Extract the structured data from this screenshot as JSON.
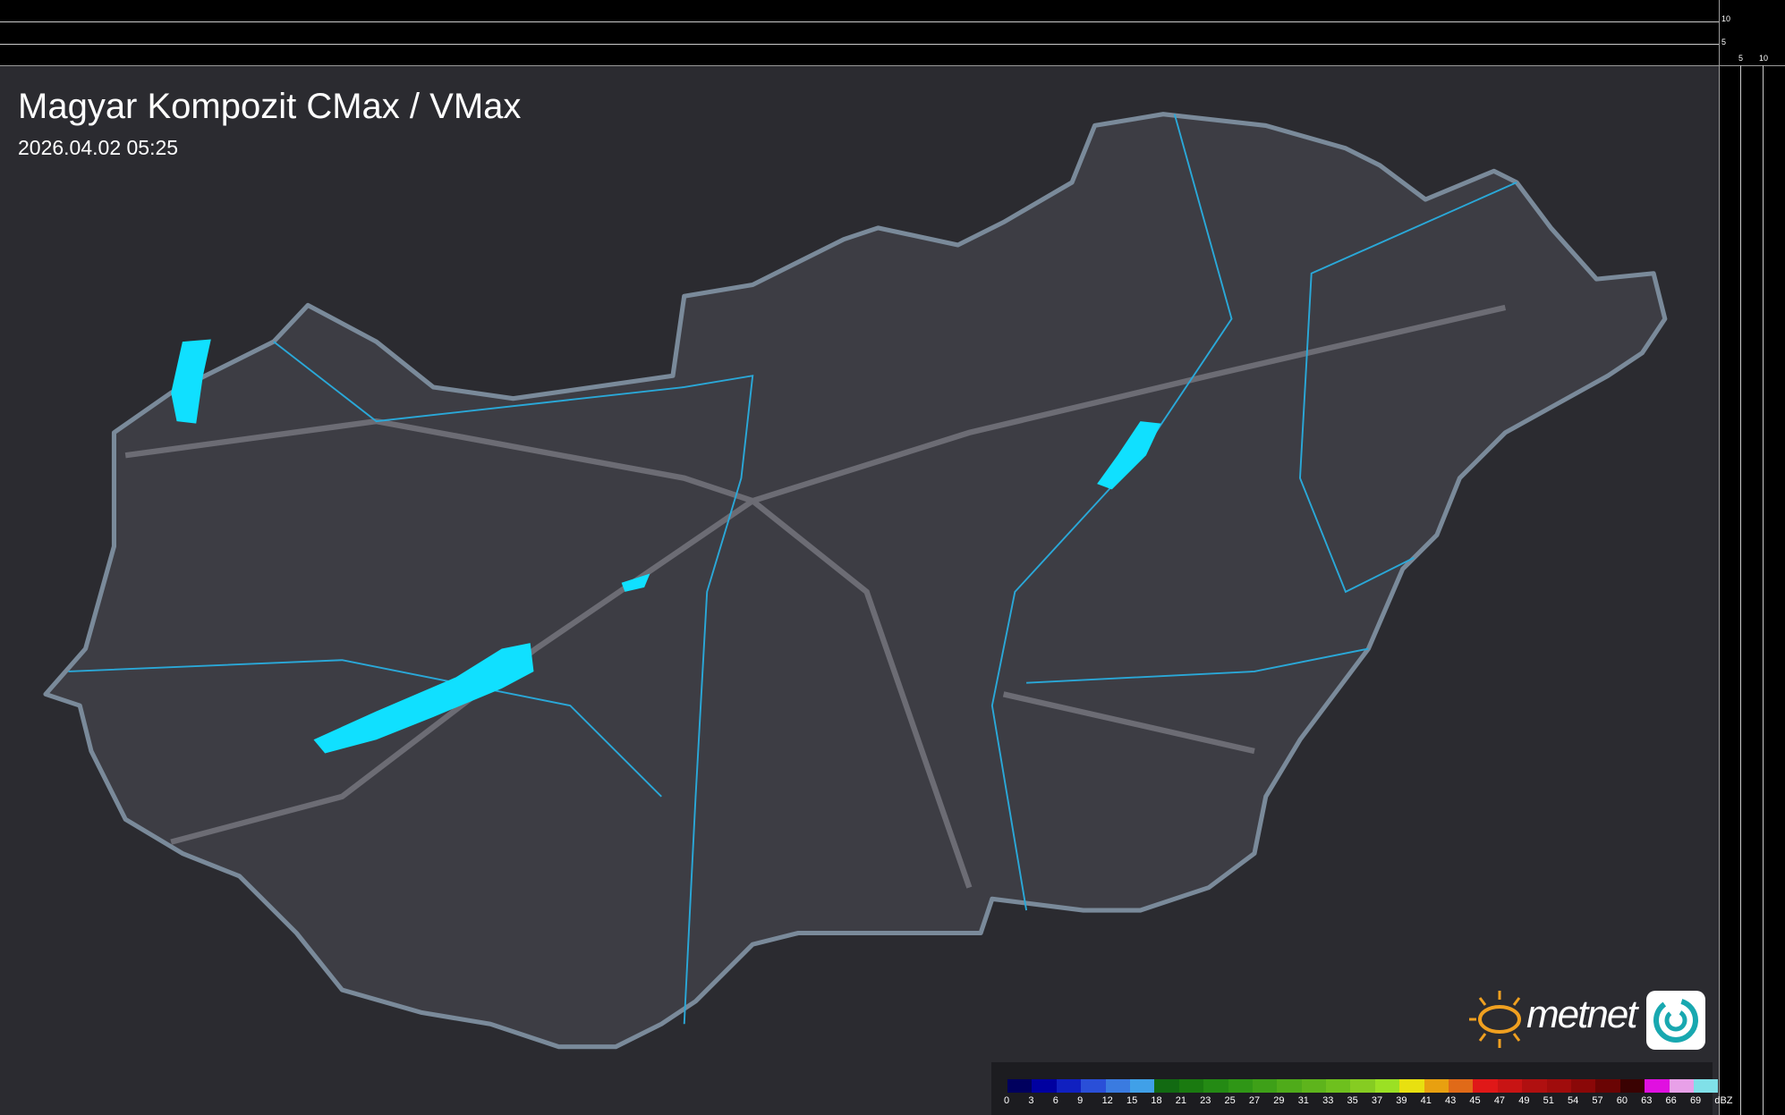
{
  "title": "Magyar Kompozit CMax / VMax",
  "timestamp": "2026.04.02 05:25",
  "side_profile_axes": {
    "top_ticks": [
      "10",
      "5"
    ],
    "right_ticks": [
      "5",
      "10"
    ]
  },
  "logo": {
    "text": "metnet"
  },
  "legend": {
    "unit": "dBZ",
    "labels": [
      "0",
      "3",
      "6",
      "9",
      "12",
      "15",
      "18",
      "21",
      "23",
      "25",
      "27",
      "29",
      "31",
      "33",
      "35",
      "37",
      "39",
      "41",
      "43",
      "45",
      "47",
      "49",
      "51",
      "54",
      "57",
      "60",
      "63",
      "66",
      "69"
    ],
    "colors": [
      "#00005e",
      "#0000a0",
      "#1020c0",
      "#2a4fd8",
      "#3a7be0",
      "#40a0e8",
      "#126a12",
      "#1a7a10",
      "#248a14",
      "#2f9616",
      "#3ea018",
      "#4fab1a",
      "#5eb41c",
      "#6ec01e",
      "#86cc22",
      "#9be024",
      "#e8e010",
      "#e8a010",
      "#e06a18",
      "#e01818",
      "#c81414",
      "#b01010",
      "#a00c0c",
      "#8a0808",
      "#6a0404",
      "#3a0202",
      "#e010e0",
      "#e8a0e8",
      "#80e0e8"
    ]
  },
  "colors": {
    "background": "#2b2b30",
    "country": "#3d3d44",
    "border": "#7a8a9a",
    "rivers": "#2aa8d8",
    "lakes": "#10e0ff"
  }
}
